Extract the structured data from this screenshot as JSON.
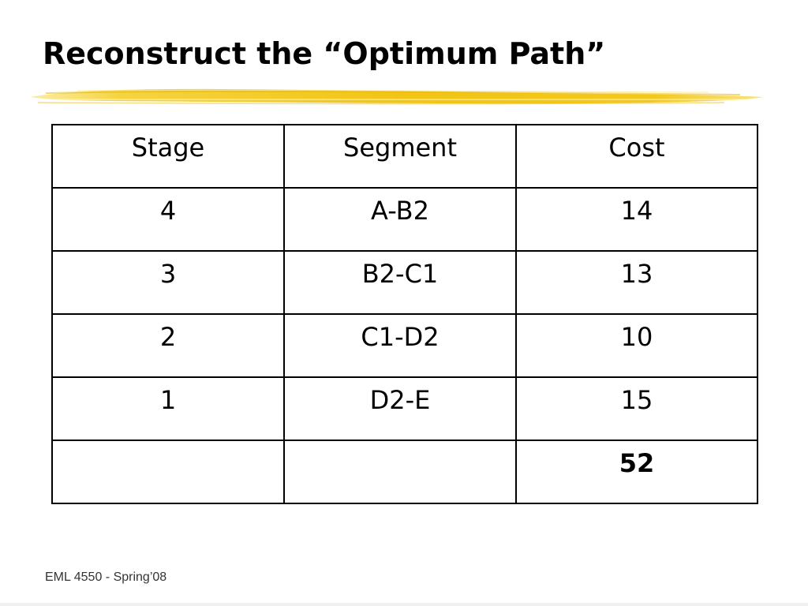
{
  "slide": {
    "title": "Reconstruct the “Optimum Path”",
    "footer": "EML 4550 - Spring’08",
    "accent_color": "#f2c515"
  },
  "table": {
    "headers": [
      "Stage",
      "Segment",
      "Cost"
    ],
    "rows": [
      [
        "4",
        "A-B2",
        "14"
      ],
      [
        "3",
        "B2-C1",
        "13"
      ],
      [
        "2",
        "C1-D2",
        "10"
      ],
      [
        "1",
        "D2-E",
        "15"
      ],
      [
        "",
        "",
        "52"
      ]
    ]
  }
}
